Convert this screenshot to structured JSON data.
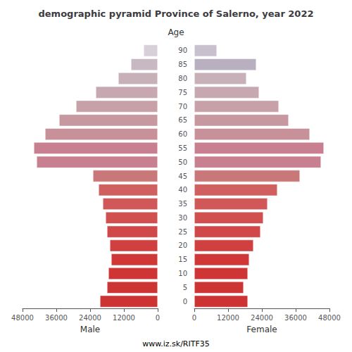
{
  "chart_data": {
    "type": "bar",
    "orientation": "horizontal",
    "title": "demographic pyramid Province of Salerno, year 2022",
    "ylabel": "Age",
    "annotations": [
      "www.iz.sk/RITF35"
    ],
    "categories": [
      "0",
      "5",
      "10",
      "15",
      "20",
      "25",
      "30",
      "35",
      "40",
      "45",
      "50",
      "55",
      "60",
      "65",
      "70",
      "75",
      "80",
      "85",
      "90"
    ],
    "series": [
      {
        "name": "Male",
        "values": [
          20500,
          18000,
          17500,
          16500,
          17000,
          18000,
          18500,
          19500,
          21000,
          23000,
          43000,
          44000,
          40000,
          35000,
          29000,
          22000,
          14000,
          9500,
          5000
        ],
        "colors": [
          "#cd3333",
          "#cd3535",
          "#d03535",
          "#d03838",
          "#d04040",
          "#d04848",
          "#d05050",
          "#d05858",
          "#d06060",
          "#c87878",
          "#c88090",
          "#c88090",
          "#c89098",
          "#c898a0",
          "#c8a0a8",
          "#c8a8b0",
          "#c8b0b8",
          "#c8b8c2",
          "#d8d0d8"
        ]
      },
      {
        "name": "Female",
        "values": [
          19000,
          17500,
          19000,
          19500,
          21000,
          23500,
          24500,
          26000,
          29500,
          37500,
          45000,
          46000,
          41000,
          33500,
          30000,
          23000,
          18500,
          22000,
          8000
        ],
        "colors": [
          "#cd3333",
          "#cd3535",
          "#d03535",
          "#d03838",
          "#d04040",
          "#d04848",
          "#d05050",
          "#d05858",
          "#d06060",
          "#c87878",
          "#c88090",
          "#c88090",
          "#c89098",
          "#c898a0",
          "#c8a0a8",
          "#c8a8b0",
          "#c8b0b8",
          "#b8b0c0",
          "#c8c0cc"
        ]
      }
    ],
    "xlim": [
      0,
      48000
    ],
    "xticks": [
      0,
      12000,
      24000,
      36000,
      48000
    ],
    "grid": false
  }
}
